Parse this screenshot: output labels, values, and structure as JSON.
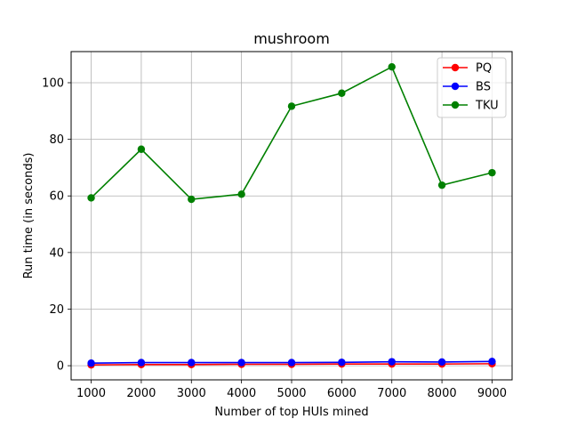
{
  "chart_data": {
    "type": "line",
    "title": "mushroom",
    "xlabel": "Number of top HUIs mined",
    "ylabel": "Run time (in seconds)",
    "x": [
      1000,
      2000,
      3000,
      4000,
      5000,
      6000,
      7000,
      8000,
      9000
    ],
    "xlim": [
      600,
      9400
    ],
    "ylim": [
      -5,
      111
    ],
    "xticks": [
      1000,
      2000,
      3000,
      4000,
      5000,
      6000,
      7000,
      8000,
      9000
    ],
    "yticks": [
      0,
      20,
      40,
      60,
      80,
      100
    ],
    "grid": true,
    "legend_position": "top-right",
    "series": [
      {
        "name": "PQ",
        "color": "#ff0000",
        "marker": "circle",
        "values": [
          0.3,
          0.4,
          0.4,
          0.5,
          0.5,
          0.6,
          0.6,
          0.6,
          0.7
        ]
      },
      {
        "name": "BS",
        "color": "#0000ff",
        "marker": "circle",
        "values": [
          0.9,
          1.1,
          1.1,
          1.1,
          1.1,
          1.2,
          1.4,
          1.3,
          1.5
        ]
      },
      {
        "name": "TKU",
        "color": "#008000",
        "marker": "circle",
        "values": [
          59.3,
          76.5,
          58.8,
          60.6,
          91.7,
          96.3,
          105.6,
          63.8,
          68.2
        ]
      }
    ]
  }
}
